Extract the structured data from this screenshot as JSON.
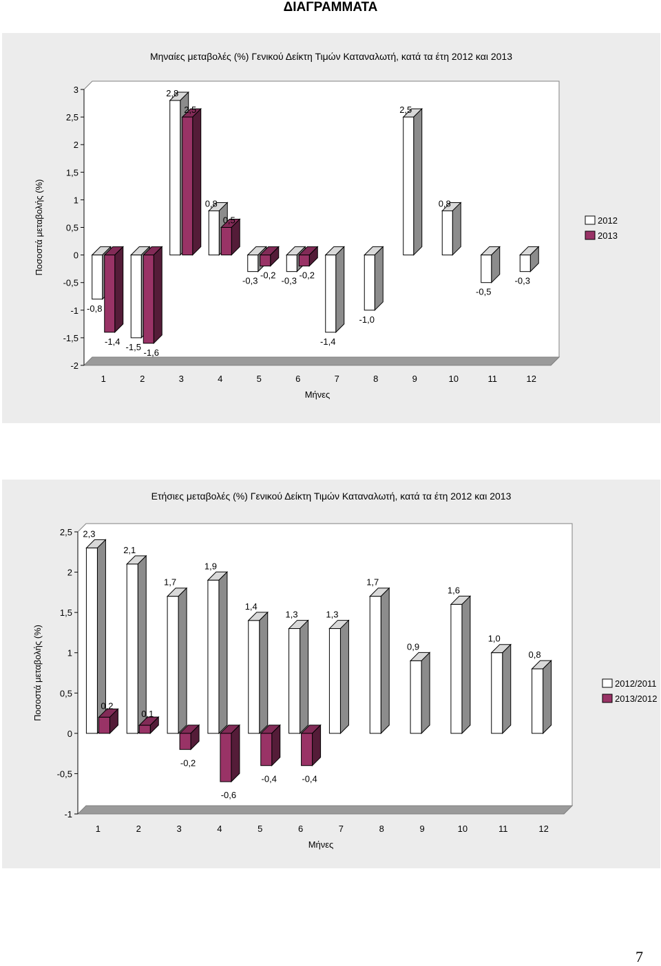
{
  "page": {
    "heading": "ΔΙΑΓΡΑΜΜΑΤΑ",
    "page_number": "7"
  },
  "colors": {
    "series_a": "#ffffff",
    "series_b": "#993366",
    "panel_bg": "#ececec",
    "plot_bg": "#ffffff"
  },
  "chart_data": [
    {
      "type": "bar",
      "title": "Μηναίες μεταβολές (%) Γενικού Δείκτη Τιμών Καταναλωτή, κατά τα έτη 2012 και 2013",
      "xlabel": "Μήνες",
      "ylabel": "Ποσοστά μεταβολής (%)",
      "ylim": [
        -2,
        3
      ],
      "yticks": [
        "3",
        "2,5",
        "2",
        "1,5",
        "1",
        "0,5",
        "0",
        "-0,5",
        "-1",
        "-1,5",
        "-2"
      ],
      "categories": [
        "1",
        "2",
        "3",
        "4",
        "5",
        "6",
        "7",
        "8",
        "9",
        "10",
        "11",
        "12"
      ],
      "legend_position": "right",
      "series": [
        {
          "name": "2012",
          "color": "#ffffff",
          "values": [
            -0.8,
            -1.5,
            2.8,
            0.8,
            -0.3,
            -0.3,
            -1.4,
            -1.0,
            2.5,
            0.8,
            -0.5,
            -0.3
          ],
          "labels": [
            "-0,8",
            "-1,5",
            "2,8",
            "0,8",
            "-0,3",
            "-0,3",
            "-1,4",
            "-1,0",
            "2,5",
            "0,8",
            "-0,5",
            "-0,3"
          ]
        },
        {
          "name": "2013",
          "color": "#993366",
          "values": [
            -1.4,
            -1.6,
            2.5,
            0.5,
            -0.2,
            -0.2,
            null,
            null,
            null,
            null,
            null,
            null
          ],
          "labels": [
            "-1,4",
            "-1,6",
            "2,5",
            "0,5",
            "-0,2",
            "-0,2",
            "",
            "",
            "",
            "",
            "",
            ""
          ]
        }
      ]
    },
    {
      "type": "bar",
      "title": "Ετήσιες μεταβολές (%) Γενικού Δείκτη Τιμών Καταναλωτή, κατά τα έτη 2012 και 2013",
      "xlabel": "Μήνες",
      "ylabel": "Ποσοστά μεταβολής (%)",
      "ylim": [
        -1,
        2.5
      ],
      "yticks": [
        "2,5",
        "2",
        "1,5",
        "1",
        "0,5",
        "0",
        "-0,5",
        "-1"
      ],
      "categories": [
        "1",
        "2",
        "3",
        "4",
        "5",
        "6",
        "7",
        "8",
        "9",
        "10",
        "11",
        "12"
      ],
      "legend_position": "right",
      "series": [
        {
          "name": "2012/2011",
          "color": "#ffffff",
          "values": [
            2.3,
            2.1,
            1.7,
            1.9,
            1.4,
            1.3,
            1.3,
            1.7,
            0.9,
            1.6,
            1.0,
            0.8
          ],
          "labels": [
            "2,3",
            "2,1",
            "1,7",
            "1,9",
            "1,4",
            "1,3",
            "1,3",
            "1,7",
            "0,9",
            "1,6",
            "1,0",
            "0,8"
          ]
        },
        {
          "name": "2013/2012",
          "color": "#993366",
          "values": [
            0.2,
            0.1,
            -0.2,
            -0.6,
            -0.4,
            -0.4,
            null,
            null,
            null,
            null,
            null,
            null
          ],
          "labels": [
            "0,2",
            "0,1",
            "-0,2",
            "-0,6",
            "-0,4",
            "-0,4",
            "",
            "",
            "",
            "",
            "",
            ""
          ]
        }
      ]
    }
  ]
}
